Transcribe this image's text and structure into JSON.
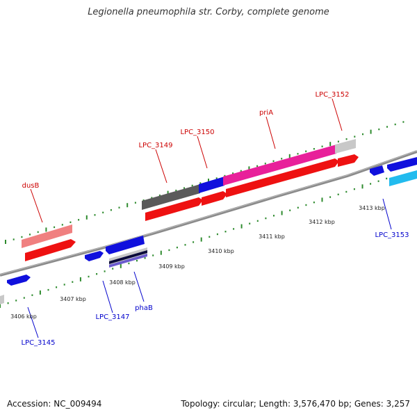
{
  "title": "Legionella pneumophila str. Corby, complete genome",
  "footer": {
    "accession": "Accession: NC_009494",
    "summary": "Topology: circular; Length: 3,576,470 bp; Genes: 3,257"
  },
  "colors": {
    "background": "#ffffff",
    "backbone": "#8a8a8a",
    "tick": "#2e8b2e",
    "top_label": "#cc0000",
    "bottom_label": "#0000cc",
    "red_gene": "#ee1111",
    "blue_gene": "#1010dd",
    "cyan_gene": "#22bbee",
    "magenta": "#e8209a",
    "dark_gray": "#5a5a5a",
    "light_gray": "#c8c8c8",
    "pink": "#f08080",
    "purple": "#6a5acd"
  },
  "scale_labels": [
    "3406 kbp",
    "3407 kbp",
    "3408 kbp",
    "3409 kbp",
    "3410 kbp",
    "3411 kbp",
    "3412 kbp",
    "3413 kbp"
  ],
  "top_labels": [
    "dusB",
    "LPC_3149",
    "LPC_3150",
    "priA",
    "LPC_3152"
  ],
  "bottom_labels": [
    "LPC_3145",
    "LPC_3147",
    "phaB",
    "LPC_3153"
  ]
}
